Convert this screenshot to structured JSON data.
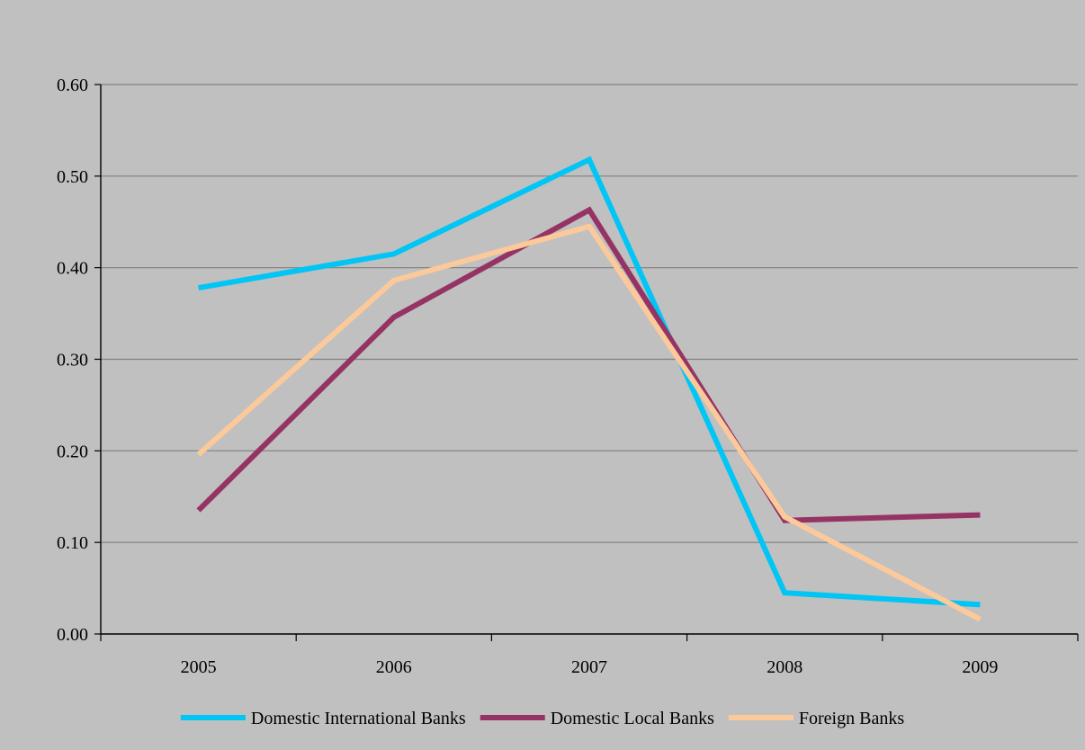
{
  "chart_data": {
    "type": "line",
    "title": "",
    "xlabel": "",
    "ylabel": "",
    "categories": [
      "2005",
      "2006",
      "2007",
      "2008",
      "2009"
    ],
    "ylim": [
      0,
      0.6
    ],
    "yticks": [
      0.0,
      0.1,
      0.2,
      0.3,
      0.4,
      0.5,
      0.6
    ],
    "ytick_labels": [
      "0.00",
      "0.10",
      "0.20",
      "0.30",
      "0.40",
      "0.50",
      "0.60"
    ],
    "grid": true,
    "legend_position": "bottom",
    "series": [
      {
        "name": "Domestic International Banks",
        "color": "#00c5f5",
        "values": [
          0.378,
          0.415,
          0.518,
          0.045,
          0.032
        ]
      },
      {
        "name": "Domestic Local Banks",
        "color": "#953464",
        "values": [
          0.135,
          0.346,
          0.463,
          0.124,
          0.13
        ]
      },
      {
        "name": "Foreign Banks",
        "color": "#fcc99a",
        "values": [
          0.196,
          0.386,
          0.445,
          0.128,
          0.016
        ]
      }
    ]
  }
}
